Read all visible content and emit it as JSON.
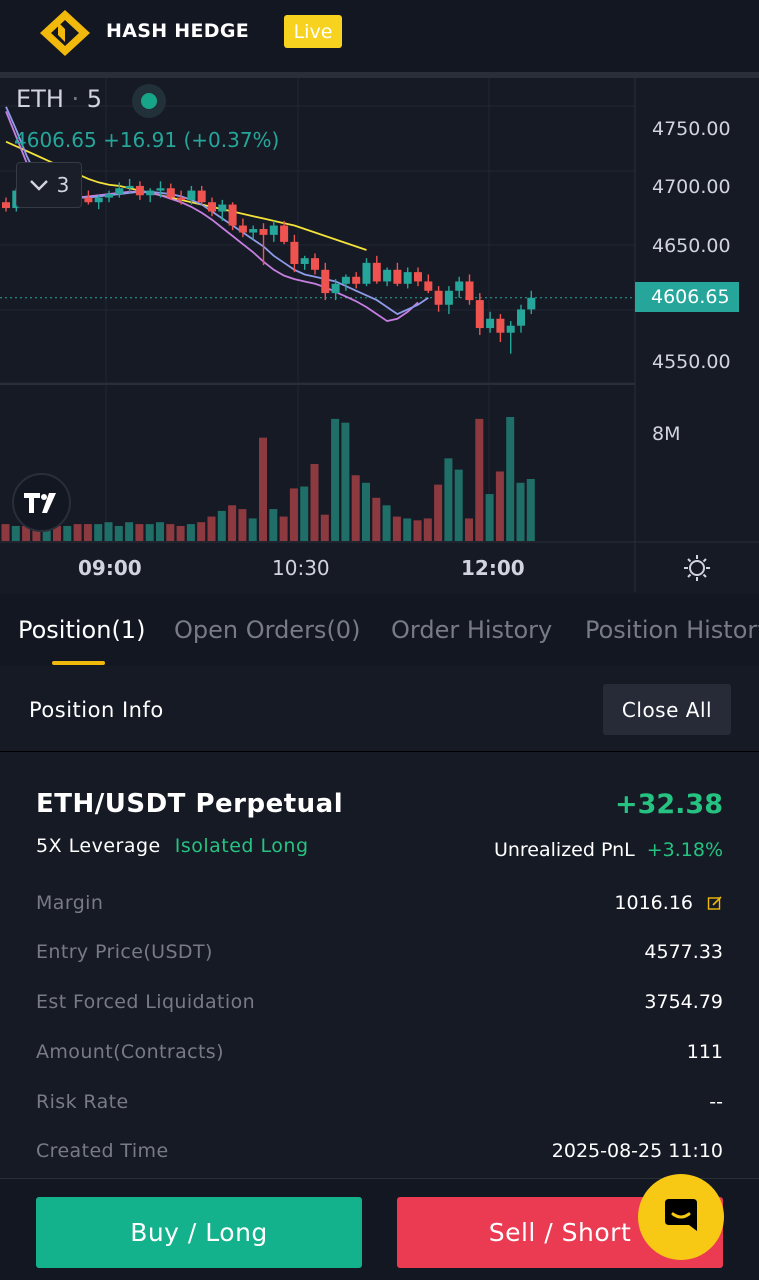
{
  "header": {
    "brand": "HASH HEDGE",
    "badge": "Live",
    "logo_icon": "hash-hedge-logo"
  },
  "chart": {
    "symbol": "ETH",
    "interval": "5",
    "last_price": "4606.65",
    "change": "+16.91",
    "change_pct": "(+0.37%)",
    "indicator_count": "3",
    "price_ticks": [
      "4750.00",
      "4700.00",
      "4650.00",
      "4550.00"
    ],
    "current_price_label": "4606.65",
    "volume_tick": "8M",
    "time_ticks": [
      "09:00",
      "10:30",
      "12:00"
    ],
    "colors": {
      "up": "#26a69a",
      "down": "#ef5350",
      "ma_slow": "#f2e23a",
      "ma_fast": "#8f9be8",
      "ma_mid": "#c67ee0"
    }
  },
  "chart_data": {
    "type": "candlestick",
    "ylim": [
      4520,
      4780
    ],
    "series": [
      {
        "o": 4688,
        "h": 4692,
        "l": 4680,
        "c": 4683
      },
      {
        "o": 4683,
        "h": 4700,
        "l": 4680,
        "c": 4698
      },
      {
        "o": 4698,
        "h": 4704,
        "l": 4692,
        "c": 4696
      },
      {
        "o": 4696,
        "h": 4702,
        "l": 4690,
        "c": 4693
      },
      {
        "o": 4693,
        "h": 4700,
        "l": 4688,
        "c": 4699
      },
      {
        "o": 4699,
        "h": 4703,
        "l": 4692,
        "c": 4694
      },
      {
        "o": 4694,
        "h": 4700,
        "l": 4688,
        "c": 4696
      },
      {
        "o": 4696,
        "h": 4700,
        "l": 4690,
        "c": 4692
      },
      {
        "o": 4692,
        "h": 4698,
        "l": 4686,
        "c": 4688
      },
      {
        "o": 4688,
        "h": 4694,
        "l": 4682,
        "c": 4692
      },
      {
        "o": 4692,
        "h": 4698,
        "l": 4688,
        "c": 4695
      },
      {
        "o": 4695,
        "h": 4705,
        "l": 4692,
        "c": 4700
      },
      {
        "o": 4700,
        "h": 4708,
        "l": 4696,
        "c": 4702
      },
      {
        "o": 4702,
        "h": 4706,
        "l": 4690,
        "c": 4694
      },
      {
        "o": 4694,
        "h": 4700,
        "l": 4688,
        "c": 4698
      },
      {
        "o": 4698,
        "h": 4706,
        "l": 4692,
        "c": 4700
      },
      {
        "o": 4700,
        "h": 4704,
        "l": 4690,
        "c": 4692
      },
      {
        "o": 4692,
        "h": 4698,
        "l": 4686,
        "c": 4690
      },
      {
        "o": 4690,
        "h": 4702,
        "l": 4686,
        "c": 4698
      },
      {
        "o": 4698,
        "h": 4702,
        "l": 4686,
        "c": 4688
      },
      {
        "o": 4688,
        "h": 4692,
        "l": 4676,
        "c": 4680
      },
      {
        "o": 4680,
        "h": 4690,
        "l": 4672,
        "c": 4686
      },
      {
        "o": 4686,
        "h": 4688,
        "l": 4664,
        "c": 4668
      },
      {
        "o": 4668,
        "h": 4674,
        "l": 4658,
        "c": 4662
      },
      {
        "o": 4662,
        "h": 4668,
        "l": 4656,
        "c": 4665
      },
      {
        "o": 4665,
        "h": 4670,
        "l": 4634,
        "c": 4660
      },
      {
        "o": 4660,
        "h": 4672,
        "l": 4654,
        "c": 4668
      },
      {
        "o": 4668,
        "h": 4672,
        "l": 4652,
        "c": 4654
      },
      {
        "o": 4654,
        "h": 4660,
        "l": 4628,
        "c": 4635
      },
      {
        "o": 4635,
        "h": 4642,
        "l": 4630,
        "c": 4640
      },
      {
        "o": 4640,
        "h": 4644,
        "l": 4626,
        "c": 4630
      },
      {
        "o": 4630,
        "h": 4636,
        "l": 4604,
        "c": 4610
      },
      {
        "o": 4610,
        "h": 4622,
        "l": 4604,
        "c": 4618
      },
      {
        "o": 4618,
        "h": 4626,
        "l": 4612,
        "c": 4624
      },
      {
        "o": 4624,
        "h": 4628,
        "l": 4614,
        "c": 4618
      },
      {
        "o": 4618,
        "h": 4640,
        "l": 4616,
        "c": 4636
      },
      {
        "o": 4636,
        "h": 4642,
        "l": 4618,
        "c": 4620
      },
      {
        "o": 4620,
        "h": 4632,
        "l": 4616,
        "c": 4630
      },
      {
        "o": 4630,
        "h": 4636,
        "l": 4616,
        "c": 4618
      },
      {
        "o": 4618,
        "h": 4632,
        "l": 4614,
        "c": 4628
      },
      {
        "o": 4628,
        "h": 4632,
        "l": 4616,
        "c": 4620
      },
      {
        "o": 4620,
        "h": 4626,
        "l": 4610,
        "c": 4612
      },
      {
        "o": 4612,
        "h": 4616,
        "l": 4594,
        "c": 4600
      },
      {
        "o": 4600,
        "h": 4616,
        "l": 4592,
        "c": 4612
      },
      {
        "o": 4612,
        "h": 4624,
        "l": 4606,
        "c": 4620
      },
      {
        "o": 4620,
        "h": 4626,
        "l": 4600,
        "c": 4604
      },
      {
        "o": 4604,
        "h": 4610,
        "l": 4574,
        "c": 4580
      },
      {
        "o": 4580,
        "h": 4594,
        "l": 4576,
        "c": 4588
      },
      {
        "o": 4588,
        "h": 4592,
        "l": 4568,
        "c": 4576
      },
      {
        "o": 4576,
        "h": 4586,
        "l": 4558,
        "c": 4582
      },
      {
        "o": 4582,
        "h": 4600,
        "l": 4576,
        "c": 4596
      },
      {
        "o": 4596,
        "h": 4612,
        "l": 4592,
        "c": 4606
      }
    ],
    "volume": [
      9,
      8,
      8,
      7,
      7,
      8,
      8,
      9,
      9,
      9,
      10,
      8,
      10,
      9,
      9,
      10,
      9,
      8,
      9,
      10,
      13,
      16,
      19,
      17,
      12,
      55,
      17,
      13,
      28,
      29,
      41,
      14,
      65,
      63,
      35,
      31,
      23,
      19,
      13,
      12,
      11,
      12,
      30,
      44,
      38,
      12,
      65,
      25,
      37,
      66,
      31,
      33
    ],
    "ma_slow": [
      4740,
      4736,
      4732,
      4728,
      4724,
      4720,
      4716,
      4712,
      4708,
      4705,
      4703,
      4702,
      4700,
      4698,
      4696,
      4694,
      4692,
      4690,
      4688,
      4686,
      4684,
      4682,
      4680,
      4678,
      4676,
      4674,
      4672,
      4670,
      4668,
      4665,
      4662,
      4659,
      4656,
      4653,
      4650,
      4647
    ],
    "ma_fast": [
      4770,
      4750,
      4728,
      4710,
      4700,
      4696,
      4694,
      4692,
      4692,
      4693,
      4694,
      4695,
      4696,
      4697,
      4697,
      4696,
      4695,
      4693,
      4690,
      4686,
      4680,
      4674,
      4668,
      4662,
      4656,
      4650,
      4642,
      4636,
      4630,
      4626,
      4624,
      4622,
      4620,
      4616,
      4612,
      4608,
      4604,
      4598,
      4592,
      4596,
      4600,
      4606
    ],
    "ma_mid": [
      4766,
      4744,
      4722,
      4706,
      4698,
      4694,
      4693,
      4692,
      4693,
      4694,
      4695,
      4696,
      4697,
      4697,
      4696,
      4694,
      4691,
      4688,
      4684,
      4679,
      4673,
      4666,
      4659,
      4652,
      4645,
      4637,
      4630,
      4625,
      4622,
      4620,
      4618,
      4615,
      4611,
      4607,
      4603,
      4598,
      4592,
      4586,
      4588,
      4594,
      4602
    ]
  },
  "tabs": [
    {
      "label": "Position(1)"
    },
    {
      "label": "Open Orders(0)"
    },
    {
      "label": "Order History"
    },
    {
      "label": "Position History"
    }
  ],
  "position_info": {
    "title": "Position Info",
    "close_all": "Close All"
  },
  "position": {
    "pair": "ETH/USDT Perpetual",
    "pnl": "+32.38",
    "leverage": "5X  Leverage",
    "side": "Isolated Long",
    "unrealized_label": "Unrealized PnL",
    "unrealized_pct": "+3.18%",
    "rows": [
      {
        "k": "Margin",
        "v": "1016.16"
      },
      {
        "k": "Entry Price(USDT)",
        "v": "4577.33"
      },
      {
        "k": "Est Forced Liquidation",
        "v": "3754.79"
      },
      {
        "k": "Amount(Contracts)",
        "v": "111"
      },
      {
        "k": "Risk Rate",
        "v": "--"
      },
      {
        "k": "Created Time",
        "v": "2025-08-25 11:10"
      }
    ]
  },
  "footer": {
    "buy": "Buy / Long",
    "sell": "Sell / Short",
    "chat_icon": "chat-support-icon"
  }
}
